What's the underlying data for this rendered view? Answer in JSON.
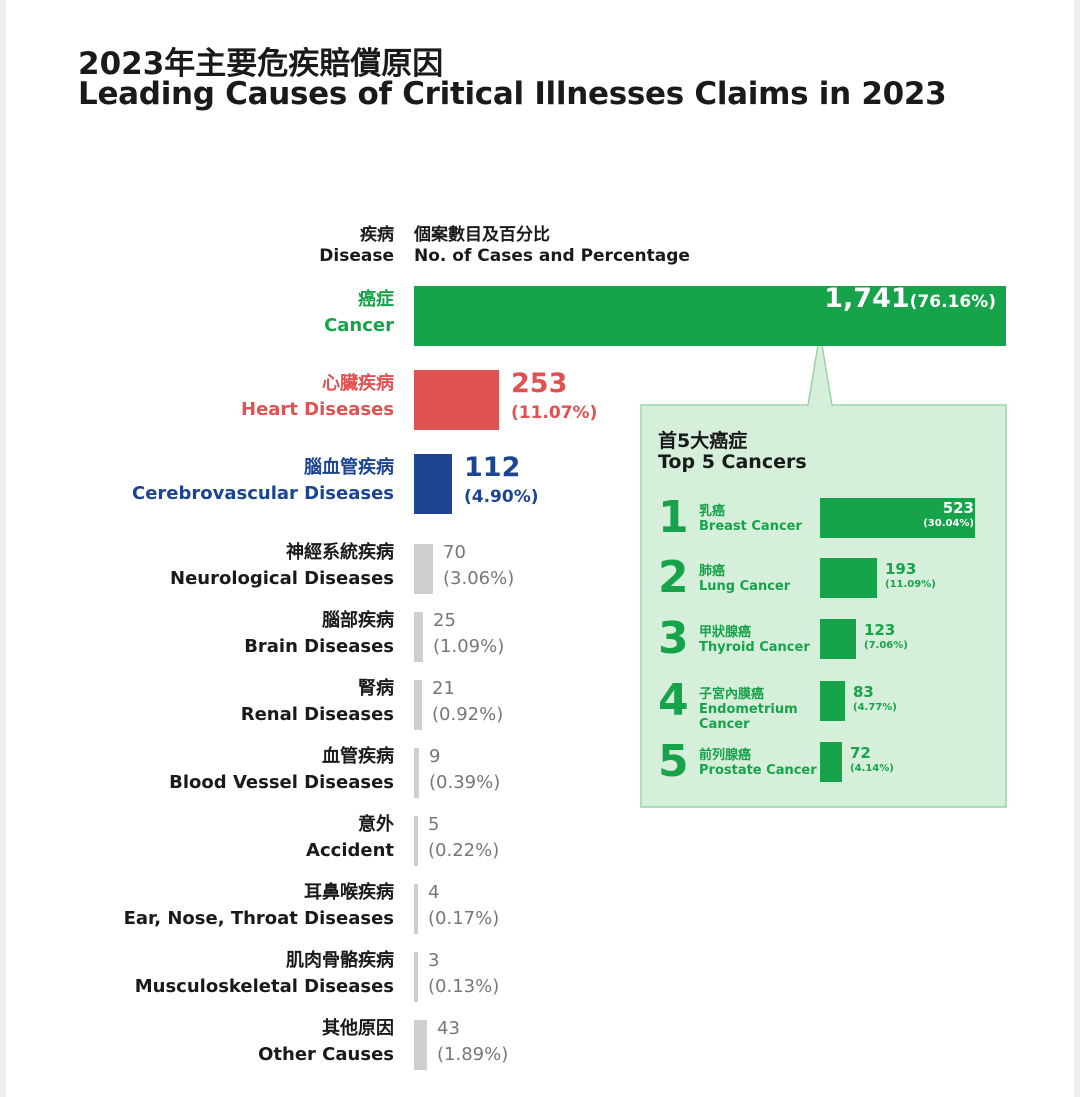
{
  "title": {
    "zh": "2023年主要危疾賠償原因",
    "en": "Leading Causes of Critical Illnesses Claims in 2023"
  },
  "header": {
    "disease_zh": "疾病",
    "disease_en": "Disease",
    "cases_zh": "個案數目及百分比",
    "cases_en": "No. of Cases and Percentage"
  },
  "colors": {
    "cancer": "#16a34a",
    "heart": "#e05252",
    "cerebro": "#1d4491",
    "other": "#cfcfcf",
    "callout_bg": "#d5efda",
    "grey_text": "#777777"
  },
  "chart_data": [
    {
      "type": "bar",
      "title": "Leading Causes of Critical Illnesses Claims in 2023",
      "xlabel": "No. of Cases and Percentage",
      "ylabel": "Disease",
      "orientation": "horizontal",
      "categories": [
        {
          "zh": "癌症",
          "en": "Cancer",
          "value": 1741,
          "value_label": "1,741",
          "pct": "(76.16%)"
        },
        {
          "zh": "心臟疾病",
          "en": "Heart Diseases",
          "value": 253,
          "value_label": "253",
          "pct": "(11.07%)"
        },
        {
          "zh": "腦血管疾病",
          "en": "Cerebrovascular Diseases",
          "value": 112,
          "value_label": "112",
          "pct": "(4.90%)"
        },
        {
          "zh": "神經系統疾病",
          "en": "Neurological Diseases",
          "value": 70,
          "value_label": "70",
          "pct": "(3.06%)"
        },
        {
          "zh": "腦部疾病",
          "en": "Brain Diseases",
          "value": 25,
          "value_label": "25",
          "pct": "(1.09%)"
        },
        {
          "zh": "腎病",
          "en": "Renal Diseases",
          "value": 21,
          "value_label": "21",
          "pct": "(0.92%)"
        },
        {
          "zh": "血管疾病",
          "en": "Blood Vessel Diseases",
          "value": 9,
          "value_label": "9",
          "pct": "(0.39%)"
        },
        {
          "zh": "意外",
          "en": "Accident",
          "value": 5,
          "value_label": "5",
          "pct": "(0.22%)"
        },
        {
          "zh": "耳鼻喉疾病",
          "en": "Ear, Nose, Throat Diseases",
          "value": 4,
          "value_label": "4",
          "pct": "(0.17%)"
        },
        {
          "zh": "肌肉骨骼疾病",
          "en": "Musculoskeletal Diseases",
          "value": 3,
          "value_label": "3",
          "pct": "(0.13%)"
        },
        {
          "zh": "其他原因",
          "en": "Other Causes",
          "value": 43,
          "value_label": "43",
          "pct": "(1.89%)"
        }
      ]
    },
    {
      "type": "bar",
      "title_zh": "首5大癌症",
      "title": "Top 5 Cancers",
      "orientation": "horizontal",
      "categories": [
        {
          "rank": "1",
          "zh": "乳癌",
          "en": "Breast Cancer",
          "value": 523,
          "value_label": "523",
          "pct": "(30.04%)"
        },
        {
          "rank": "2",
          "zh": "肺癌",
          "en": "Lung Cancer",
          "value": 193,
          "value_label": "193",
          "pct": "(11.09%)"
        },
        {
          "rank": "3",
          "zh": "甲狀腺癌",
          "en": "Thyroid Cancer",
          "value": 123,
          "value_label": "123",
          "pct": "(7.06%)"
        },
        {
          "rank": "4",
          "zh": "子宮內膜癌",
          "en": "Endometrium Cancer",
          "value": 83,
          "value_label": "83",
          "pct": "(4.77%)"
        },
        {
          "rank": "5",
          "zh": "前列腺癌",
          "en": "Prostate Cancer",
          "value": 72,
          "value_label": "72",
          "pct": "(4.14%)"
        }
      ]
    }
  ]
}
